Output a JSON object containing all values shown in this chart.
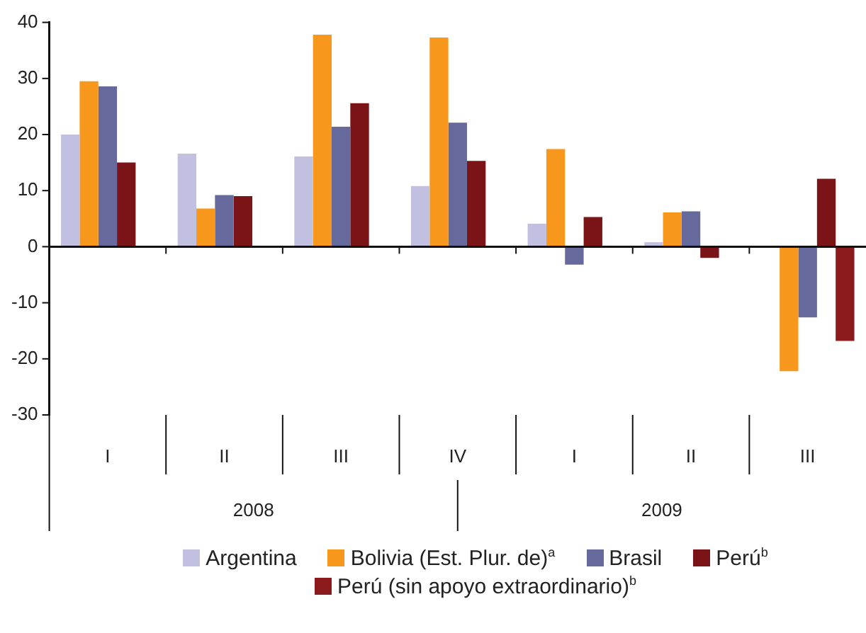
{
  "chart_data": {
    "type": "bar",
    "categories": [
      "I",
      "II",
      "III",
      "IV",
      "I",
      "II",
      "III"
    ],
    "series": [
      {
        "name": "Argentina",
        "color": "#c1c0e0",
        "values": [
          20,
          16.6,
          16.1,
          10.8,
          4.1,
          0.8,
          null
        ]
      },
      {
        "name": "Bolivia (Est. Plur. de)$^{a}$",
        "color": "#f7981d",
        "values": [
          29.5,
          6.8,
          37.8,
          37.3,
          17.4,
          6.1,
          -22.2
        ]
      },
      {
        "name": "Brasil",
        "color": "#65699c",
        "values": [
          28.6,
          9.2,
          21.4,
          22.1,
          -3.2,
          6.3,
          -12.6
        ]
      },
      {
        "name": "Perú$^{b}$",
        "color": "#7b1416",
        "values": [
          15,
          9,
          25.6,
          15.3,
          5.3,
          -2,
          12.1
        ]
      },
      {
        "name": "Perú (sin apoyo extraordinario)$^{b}$",
        "color": "#8b1a1c",
        "values": [
          null,
          null,
          null,
          null,
          null,
          null,
          -16.8
        ]
      }
    ],
    "ylim": [
      -30,
      40
    ],
    "yticks": [
      -30,
      -20,
      -10,
      0,
      10,
      20,
      30,
      40
    ],
    "grid": false,
    "legend": "bottom",
    "ref_lines": [
      {
        "axis": "y",
        "value": 0,
        "color": "#111111"
      }
    ],
    "annotations": [
      "2008",
      "2009"
    ]
  }
}
